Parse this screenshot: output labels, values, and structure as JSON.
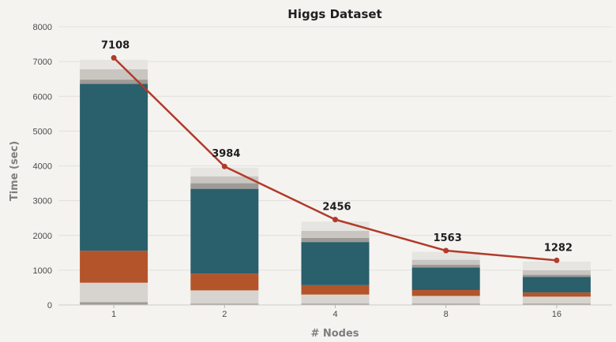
{
  "chart_data": {
    "type": "bar",
    "title": "Higgs Dataset",
    "xlabel": "# Nodes",
    "ylabel": "Time (sec)",
    "ylim": [
      0,
      8000
    ],
    "yticks": [
      0,
      1000,
      2000,
      3000,
      4000,
      5000,
      6000,
      7000,
      8000
    ],
    "categories": [
      "1",
      "2",
      "4",
      "8",
      "16"
    ],
    "stacked_series": [
      {
        "values": [
          80,
          40,
          40,
          40,
          40
        ],
        "color": "#9e9a95"
      },
      {
        "values": [
          560,
          380,
          260,
          220,
          200
        ],
        "color": "#d7d4cf"
      },
      {
        "values": [
          920,
          480,
          270,
          170,
          120
        ],
        "color": "#b4542a"
      },
      {
        "values": [
          4800,
          2440,
          1240,
          650,
          450
        ],
        "color": "#2a5f6c"
      },
      {
        "values": [
          120,
          160,
          120,
          80,
          60
        ],
        "color": "#9e9a95"
      },
      {
        "values": [
          300,
          200,
          200,
          140,
          130
        ],
        "color": "#c9c6c1"
      },
      {
        "values": [
          270,
          250,
          270,
          230,
          250
        ],
        "color": "#e7e5e1"
      }
    ],
    "line_series": {
      "values": [
        7108,
        3984,
        2456,
        1563,
        1282
      ],
      "labels": [
        "7108",
        "3984",
        "2456",
        "1563",
        "1282"
      ],
      "color": "#b23a2a"
    },
    "grid": true
  }
}
